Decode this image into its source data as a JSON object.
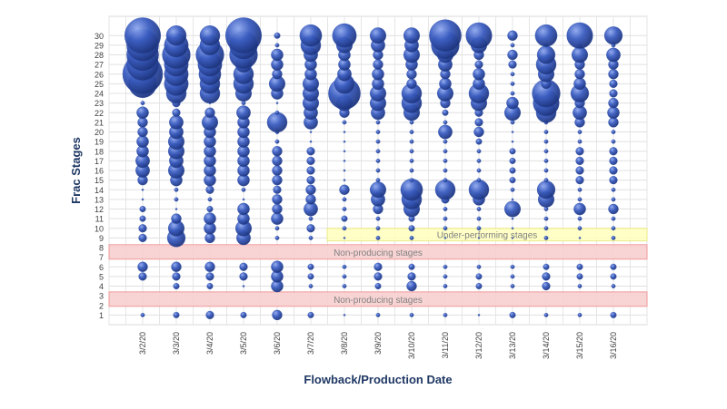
{
  "chart_data": {
    "type": "bubble",
    "x_label": "Flowback/Production Date",
    "y_label": "Frac Stages",
    "categories": [
      "3/2/20",
      "3/3/20",
      "3/4/20",
      "3/5/20",
      "3/6/20",
      "3/7/20",
      "3/8/20",
      "3/9/20",
      "3/10/20",
      "3/11/20",
      "3/12/20",
      "3/13/20",
      "3/14/20",
      "3/15/20",
      "3/16/20"
    ],
    "stages": [
      1,
      2,
      3,
      4,
      5,
      6,
      7,
      8,
      9,
      10,
      11,
      12,
      13,
      14,
      15,
      16,
      17,
      18,
      19,
      20,
      21,
      22,
      23,
      24,
      25,
      26,
      27,
      28,
      29,
      30
    ],
    "sizes": [
      [
        1,
        null,
        null,
        null,
        2,
        2.5,
        null,
        null,
        2,
        2,
        1.5,
        1.5,
        0.5,
        0.5,
        2.5,
        3.5,
        3.5,
        3,
        3,
        2.5,
        2.5,
        3,
        1,
        0.5,
        7,
        10,
        8,
        8,
        8,
        9
      ],
      [
        1.5,
        null,
        null,
        1.5,
        2,
        2.5,
        null,
        null,
        4.5,
        4,
        2.5,
        0.5,
        1,
        1,
        3,
        4,
        3.5,
        4,
        4,
        3.5,
        3.5,
        2,
        2,
        5,
        6,
        6,
        6,
        7,
        6,
        5
      ],
      [
        2,
        null,
        null,
        1.5,
        2,
        2.5,
        null,
        null,
        2.5,
        3,
        3,
        1.5,
        1,
        2,
        3,
        3,
        3,
        3,
        3,
        3,
        4,
        2.5,
        0.5,
        5,
        5,
        5.5,
        6,
        7,
        5,
        5
      ],
      [
        1.5,
        null,
        null,
        0.5,
        2,
        2,
        null,
        null,
        3.5,
        4,
        3,
        3,
        0.5,
        1,
        3,
        3,
        3,
        3,
        3,
        3,
        3,
        3.5,
        1,
        4,
        5,
        5,
        4,
        7,
        7,
        9
      ],
      [
        2.5,
        null,
        null,
        3,
        3,
        3,
        null,
        null,
        1,
        1,
        3,
        2.5,
        2.5,
        2,
        2.5,
        2.5,
        2.5,
        2.5,
        1,
        1,
        5,
        1,
        0.5,
        3,
        4,
        2.5,
        3,
        3,
        1,
        1.5
      ],
      [
        1.5,
        null,
        null,
        1,
        1.5,
        1.5,
        null,
        null,
        1,
        2,
        1,
        3.5,
        2.5,
        2.5,
        2,
        2,
        2,
        2,
        0.5,
        0.5,
        3.5,
        3.5,
        4,
        4,
        4,
        3,
        3,
        3.5,
        5,
        5.5
      ],
      [
        0.5,
        null,
        null,
        1,
        1,
        1,
        null,
        null,
        0.5,
        1,
        1.5,
        1,
        1,
        2.5,
        0.5,
        0.5,
        0.5,
        0.5,
        0.5,
        0.5,
        1,
        2.5,
        4,
        8,
        5,
        3.5,
        3,
        3,
        4,
        6
      ],
      [
        1,
        null,
        null,
        1.5,
        2,
        2,
        null,
        null,
        1,
        1,
        1,
        2.5,
        3.5,
        4,
        1,
        1,
        1,
        1,
        1,
        1,
        1,
        3.5,
        4,
        4,
        3,
        3,
        2.5,
        2.5,
        3.5,
        4
      ],
      [
        1,
        null,
        null,
        2.5,
        2,
        1.5,
        null,
        null,
        1,
        1.5,
        1.5,
        4,
        5,
        5.5,
        1,
        1,
        1,
        1,
        1,
        1,
        1,
        4,
        5,
        5,
        2.5,
        2.5,
        3,
        4,
        3.5,
        4
      ],
      [
        1,
        null,
        null,
        1,
        1,
        1,
        null,
        null,
        0.5,
        1,
        1,
        1,
        2,
        5,
        1,
        1,
        1,
        1,
        1,
        3.5,
        1,
        1.5,
        2.5,
        4,
        3,
        2.5,
        3.5,
        4,
        7,
        8
      ],
      [
        0.5,
        null,
        null,
        1.5,
        1.5,
        1,
        null,
        null,
        0.5,
        1,
        1,
        1,
        3,
        5,
        1,
        1,
        1,
        1,
        1.5,
        2.5,
        2,
        2,
        4,
        5,
        3,
        3,
        2,
        2.5,
        4,
        6.5
      ],
      [
        1.5,
        null,
        null,
        1,
        1,
        1,
        null,
        null,
        0.5,
        0.5,
        0.5,
        4,
        0.5,
        1,
        1.5,
        1.5,
        1.5,
        1.5,
        0.5,
        0.5,
        1,
        4,
        3,
        1,
        1,
        1,
        2,
        2.5,
        1,
        2.5
      ],
      [
        1,
        null,
        null,
        2,
        2,
        1.5,
        null,
        null,
        1,
        1,
        1,
        1,
        4,
        4.5,
        1,
        1,
        1,
        1,
        1,
        1,
        1,
        5,
        6.5,
        7,
        2.5,
        4,
        5,
        4.5,
        1,
        5.5
      ],
      [
        1,
        null,
        null,
        1,
        1.5,
        1.5,
        null,
        null,
        0.5,
        1,
        1,
        3,
        1,
        1,
        2,
        2,
        2,
        2,
        1,
        1,
        2.5,
        3.5,
        2.5,
        4.5,
        3,
        2.5,
        2.5,
        4,
        1,
        6.5
      ],
      [
        1.5,
        null,
        null,
        1,
        1.5,
        1.5,
        null,
        null,
        1,
        1,
        1,
        2.5,
        1,
        1,
        2,
        2,
        2,
        2,
        1,
        1,
        2.5,
        3,
        2.5,
        2,
        2,
        2.5,
        2.5,
        3.5,
        1,
        4.5
      ]
    ],
    "color": "#2f4fa8",
    "ylim": [
      0,
      32
    ],
    "yticks": [
      1,
      2,
      3,
      4,
      5,
      6,
      7,
      8,
      9,
      10,
      11,
      12,
      13,
      14,
      15,
      16,
      17,
      18,
      19,
      20,
      21,
      22,
      23,
      24,
      25,
      26,
      27,
      28,
      29,
      30
    ],
    "grid": true,
    "bands": [
      {
        "label": "Under-performing stages",
        "from": 8.7,
        "to": 10,
        "x_from": "3/8/20",
        "color": "#ffffc0",
        "edge": "#eaea80"
      },
      {
        "label": "Non-producing stages",
        "from": 6.8,
        "to": 8.3,
        "color": "#f9d0d0",
        "edge": "#f09090"
      },
      {
        "label": "Non-producing stages",
        "from": 1.9,
        "to": 3.4,
        "color": "#f9d0d0",
        "edge": "#f09090"
      }
    ]
  }
}
